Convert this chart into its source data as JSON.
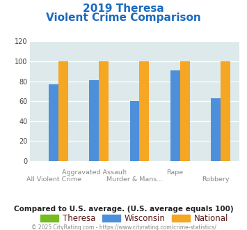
{
  "title_line1": "2019 Theresa",
  "title_line2": "Violent Crime Comparison",
  "theresa_values": [
    0,
    0,
    0,
    0,
    0
  ],
  "wisconsin_values": [
    77,
    81,
    60,
    91,
    63
  ],
  "national_values": [
    100,
    100,
    100,
    100,
    100
  ],
  "theresa_color": "#76bc21",
  "wisconsin_color": "#4d8fdb",
  "national_color": "#f5a623",
  "ylim": [
    0,
    120
  ],
  "yticks": [
    0,
    20,
    40,
    60,
    80,
    100,
    120
  ],
  "bg_color": "#dde9ea",
  "grid_color": "#ffffff",
  "title_color": "#1a6abf",
  "subtitle_note": "Compared to U.S. average. (U.S. average equals 100)",
  "footer": "© 2025 CityRating.com - https://www.cityrating.com/crime-statistics/",
  "legend_labels": [
    "Theresa",
    "Wisconsin",
    "National"
  ],
  "xtick_top": [
    "",
    "Aggravated Assault",
    "",
    "Rape",
    ""
  ],
  "xtick_bot": [
    "All Violent Crime",
    "",
    "Murder & Mans...",
    "",
    "Robbery"
  ],
  "n_cats": 5
}
